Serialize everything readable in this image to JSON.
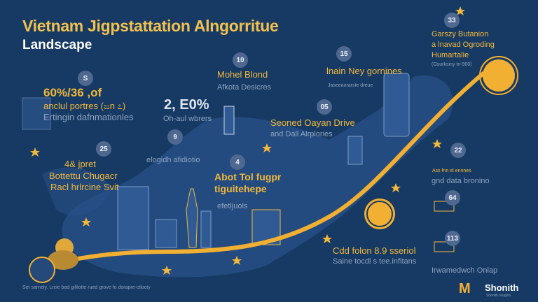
{
  "header": {
    "title": "Vietnam Jigpstattation Alngorritue",
    "subtitle": "Landscape"
  },
  "colors": {
    "background": "#163a64",
    "accent": "#f2b83b",
    "map": "#2a5288",
    "muted_text": "#8fa3bf"
  },
  "callouts": [
    {
      "badge": "S",
      "headline": "60%/36 ,of",
      "line2": "anclul portres (ಜn ೭)",
      "detail": "Ertingin dafnmationles"
    },
    {
      "badge": "",
      "headline": "2, E0%",
      "detail": "Oh-aul wbrers"
    },
    {
      "badge": "10",
      "headline": "Mohel Blond",
      "detail": "Afkota Desicres"
    },
    {
      "badge": "15",
      "headline": "lnain Ney gornines",
      "detail": "Jaseeaorarste dreue"
    },
    {
      "badge": "05",
      "headline": "Seoned Oayan Drive",
      "detail": "and Dall Alrplories"
    },
    {
      "badge": "33",
      "headline": "Garszy Butanion",
      "line2": "a lnavad Ogroding",
      "line3": "Humartalie",
      "detail": "(Gsurksiny tn-900)"
    },
    {
      "badge": "9",
      "detail": "elogidh afidiotio"
    },
    {
      "badge": "25",
      "headline": "4& jpret",
      "line2": "Bottettu Chugacr",
      "line3": "Racl hrlrcine Svit"
    },
    {
      "badge": "4",
      "headline": "Abot Tol fugpr",
      "line2": "tiguitehepe",
      "detail": "efetljuols"
    },
    {
      "badge": "22",
      "headline": "Ass fnn el ennnes",
      "detail": "gnd data bronino"
    },
    {
      "badge": "64"
    },
    {
      "badge": "113",
      "detail": "Irwamedwch Onlap"
    },
    {
      "headline": "Cdd folon 8.9 sseriol",
      "detail": "Saine tocdl s tee.infitans"
    }
  ],
  "footnote": "Set sarnely. Lrcie bad gifilotte rued grove fo dorapre-ctlocty",
  "brand": {
    "logo_letter": "M",
    "name": "Shonith",
    "tagline": "Shonith insights"
  }
}
